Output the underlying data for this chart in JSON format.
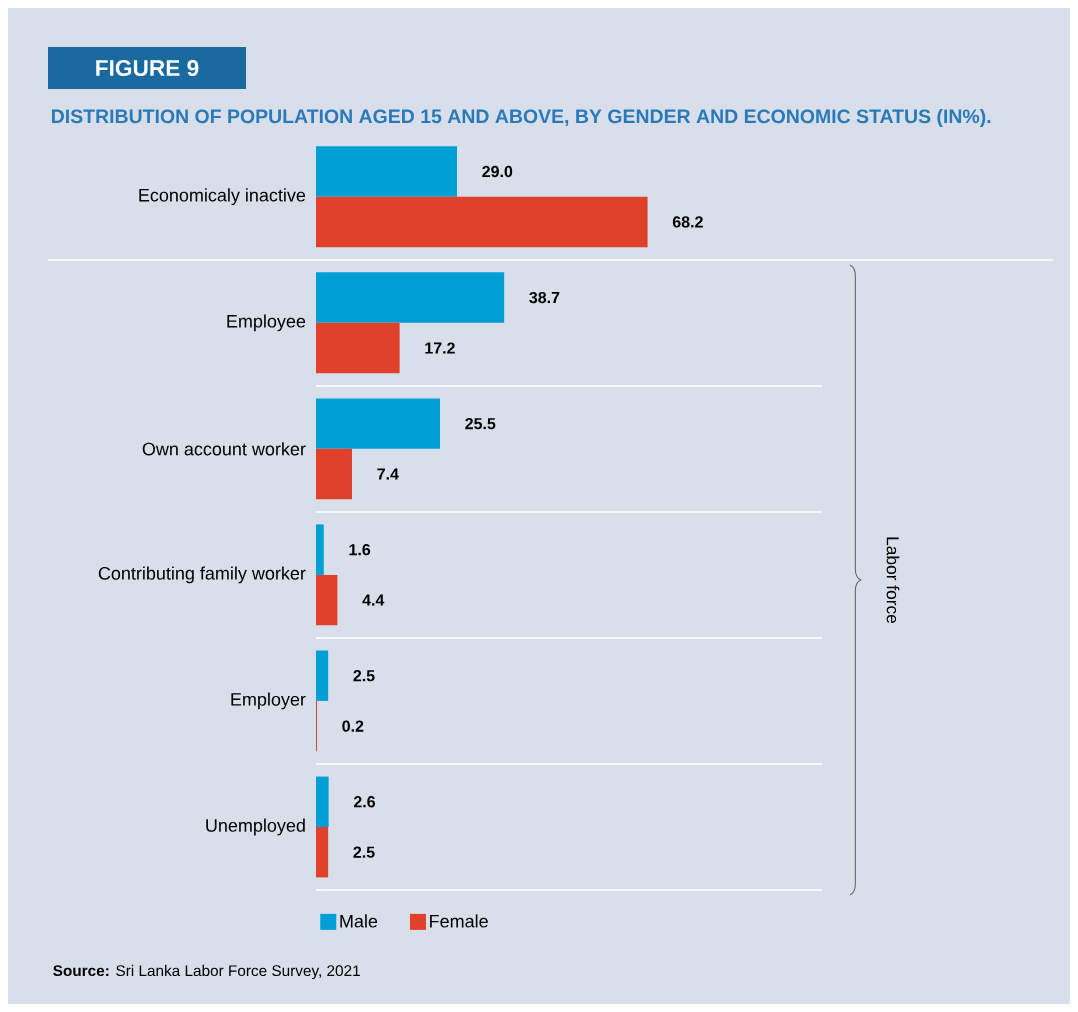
{
  "chart_data": {
    "type": "bar",
    "orientation": "horizontal",
    "title": "DISTRIBUTION OF POPULATION AGED 15 AND ABOVE, BY GENDER AND ECONOMIC STATUS (IN%).",
    "categories": [
      "Economicaly inactive",
      "Employee",
      "Own account worker",
      "Contributing family worker",
      "Employer",
      "Unemployed"
    ],
    "series": [
      {
        "name": "Male",
        "color": "#00a0d6",
        "values": [
          29.0,
          38.7,
          25.5,
          1.6,
          2.5,
          2.6
        ],
        "value_labels": [
          "29.0",
          "38.7",
          "25.5",
          "1.6",
          "2.5",
          "2.6"
        ]
      },
      {
        "name": "Female",
        "color": "#e0412a",
        "values": [
          68.2,
          17.2,
          7.4,
          4.4,
          0.2,
          2.5
        ],
        "value_labels": [
          "68.2",
          "17.2",
          "7.4",
          "4.4",
          "0.2",
          "2.5"
        ]
      }
    ],
    "legend": "bottom",
    "annotations": [
      "FIGURE 9",
      "**Source:** Sri Lanka Labor Force Survey, 2021",
      "Labor force"
    ]
  }
}
